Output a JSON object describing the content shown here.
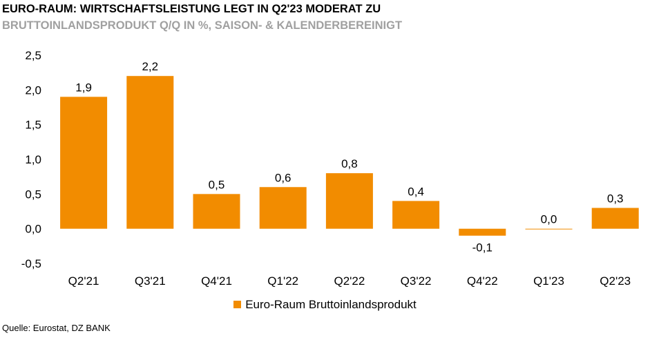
{
  "header": {
    "title": "EURO-RAUM: WIRTSCHAFTSLEISTUNG LEGT IN Q2'23 MODERAT ZU",
    "subtitle": "BRUTTOINLANDSPRODUKT Q/Q IN %, SAISON- & KALENDERBEREINIGT"
  },
  "footer": {
    "source": "Quelle: Eurostat, DZ BANK"
  },
  "colors": {
    "bar": "#f28c00",
    "subtitle": "#a0a0a0"
  },
  "chart_data": {
    "type": "bar",
    "title": "",
    "xlabel": "",
    "ylabel": "",
    "categories": [
      "Q2'21",
      "Q3'21",
      "Q4'21",
      "Q1'22",
      "Q2'22",
      "Q3'22",
      "Q4'22",
      "Q1'23",
      "Q2'23"
    ],
    "series": [
      {
        "name": "Euro-Raum Bruttoinlandsprodukt",
        "values": [
          1.9,
          2.2,
          0.5,
          0.6,
          0.8,
          0.4,
          -0.1,
          0.0,
          0.3
        ],
        "labels": [
          "1,9",
          "2,2",
          "0,5",
          "0,6",
          "0,8",
          "0,4",
          "-0,1",
          "0,0",
          "0,3"
        ]
      }
    ],
    "ylim": [
      -0.5,
      2.5
    ],
    "yticks": [
      2.5,
      2.0,
      1.5,
      1.0,
      0.5,
      0.0,
      -0.5
    ],
    "ytick_labels": [
      "2,5",
      "2,0",
      "1,5",
      "1,0",
      "0,5",
      "0,0",
      "-0,5"
    ],
    "grid": false,
    "legend_position": "bottom"
  }
}
